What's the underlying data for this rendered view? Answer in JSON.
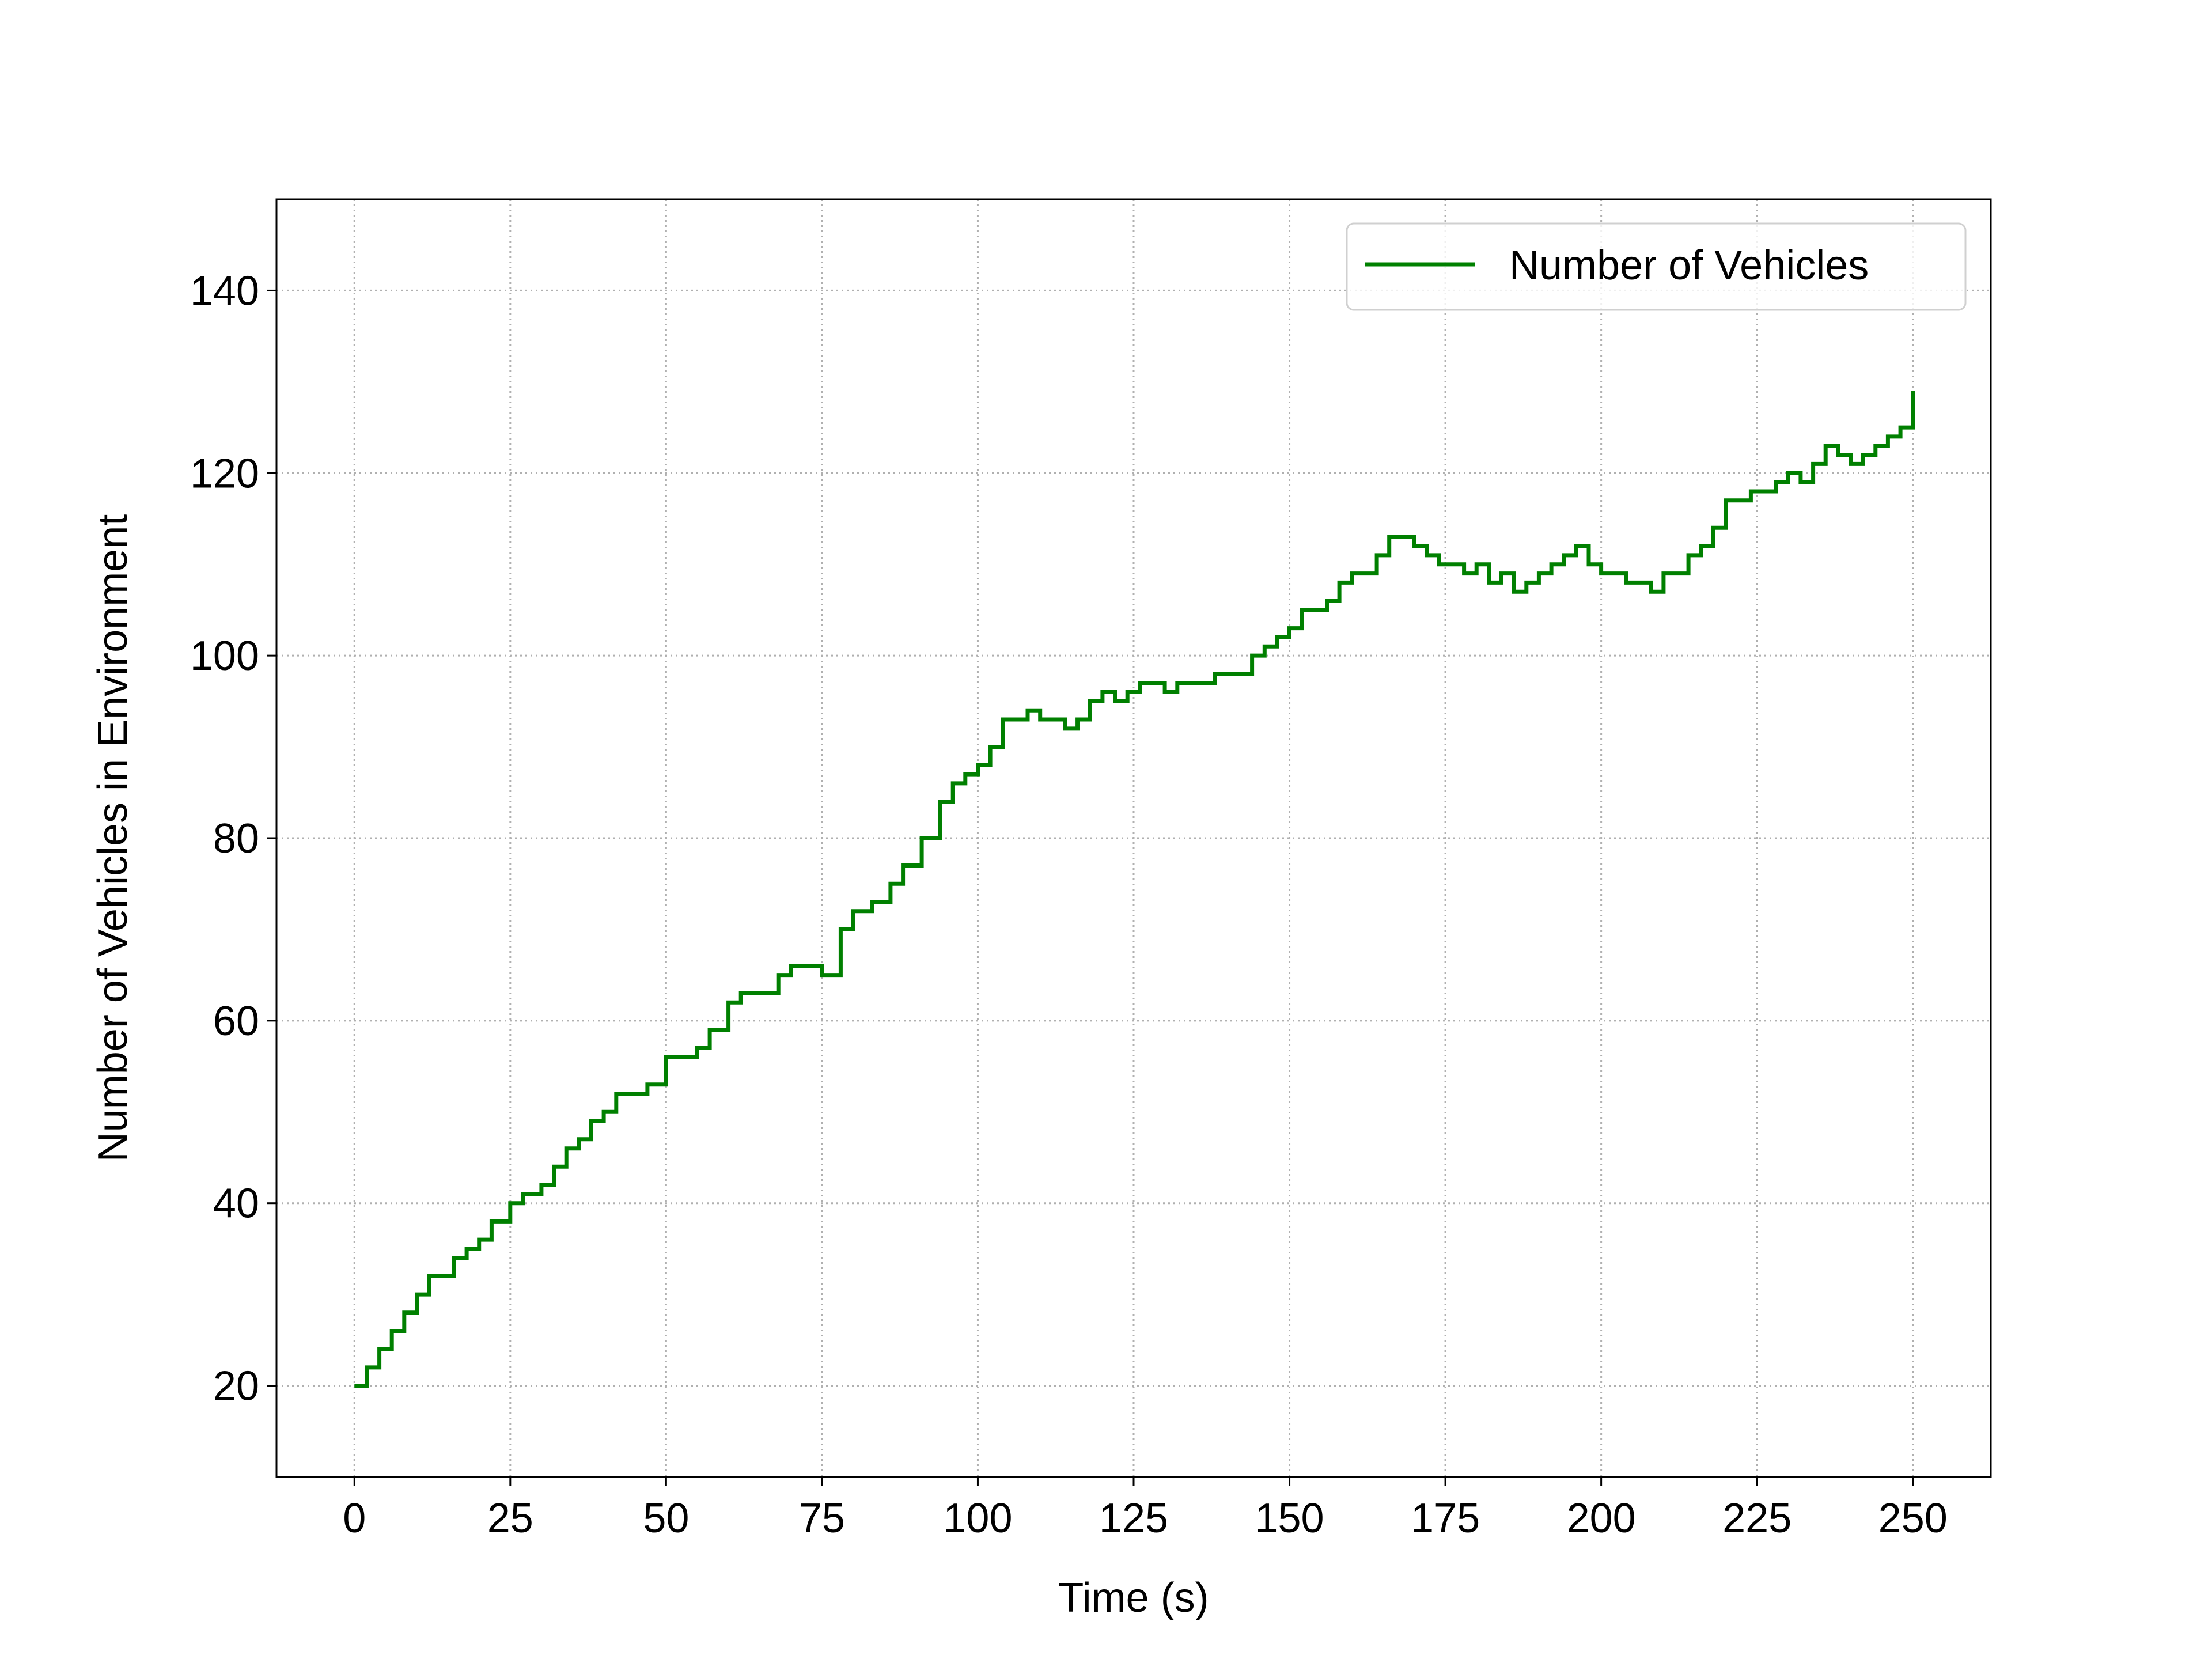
{
  "colors": {
    "line": "#008000",
    "grid": "#b0b0b0",
    "axis": "#000000",
    "legend_border": "#d0d0d0"
  },
  "chart_data": {
    "type": "line",
    "xlabel": "Time (s)",
    "ylabel": "Number of Vehicles in Environment",
    "xlim": [
      -12.5,
      262.5
    ],
    "ylim": [
      10,
      150
    ],
    "xticks": [
      0,
      25,
      50,
      75,
      100,
      125,
      150,
      175,
      200,
      225,
      250
    ],
    "yticks": [
      20,
      40,
      60,
      80,
      100,
      120,
      140
    ],
    "grid": true,
    "grid_style": "dotted",
    "legend_position": "upper right",
    "series": [
      {
        "name": "Number of Vehicles",
        "color": "#008000",
        "step": true,
        "x": [
          0,
          2,
          4,
          6,
          8,
          10,
          12,
          14,
          16,
          18,
          20,
          22,
          25,
          27,
          30,
          32,
          34,
          36,
          38,
          40,
          42,
          45,
          47,
          50,
          52,
          55,
          57,
          60,
          62,
          65,
          68,
          70,
          73,
          75,
          78,
          80,
          83,
          86,
          88,
          91,
          94,
          96,
          98,
          100,
          102,
          104,
          106,
          108,
          110,
          112,
          114,
          116,
          118,
          120,
          122,
          124,
          126,
          128,
          130,
          132,
          134,
          136,
          138,
          140,
          142,
          144,
          146,
          148,
          150,
          152,
          154,
          156,
          158,
          160,
          162,
          164,
          166,
          168,
          170,
          172,
          174,
          176,
          178,
          180,
          182,
          184,
          186,
          188,
          190,
          192,
          194,
          196,
          198,
          200,
          202,
          204,
          206,
          208,
          210,
          212,
          214,
          216,
          218,
          220,
          222,
          224,
          226,
          228,
          230,
          232,
          234,
          236,
          238,
          240,
          242,
          244,
          246,
          248,
          250
        ],
        "y": [
          20,
          22,
          24,
          26,
          28,
          30,
          32,
          32,
          34,
          35,
          36,
          38,
          40,
          41,
          42,
          44,
          46,
          47,
          49,
          50,
          52,
          52,
          53,
          56,
          56,
          57,
          59,
          62,
          63,
          63,
          65,
          66,
          66,
          65,
          70,
          72,
          73,
          75,
          77,
          80,
          84,
          86,
          87,
          88,
          90,
          93,
          93,
          94,
          93,
          93,
          92,
          93,
          95,
          96,
          95,
          96,
          97,
          97,
          96,
          97,
          97,
          97,
          98,
          98,
          98,
          100,
          101,
          102,
          103,
          105,
          105,
          106,
          108,
          109,
          109,
          111,
          113,
          113,
          112,
          111,
          110,
          110,
          109,
          110,
          108,
          109,
          107,
          108,
          109,
          110,
          111,
          112,
          110,
          109,
          109,
          108,
          108,
          107,
          109,
          109,
          111,
          112,
          114,
          117,
          117,
          118,
          118,
          119,
          120,
          119,
          121,
          123,
          122,
          121,
          122,
          123,
          124,
          125,
          129
        ]
      }
    ]
  }
}
